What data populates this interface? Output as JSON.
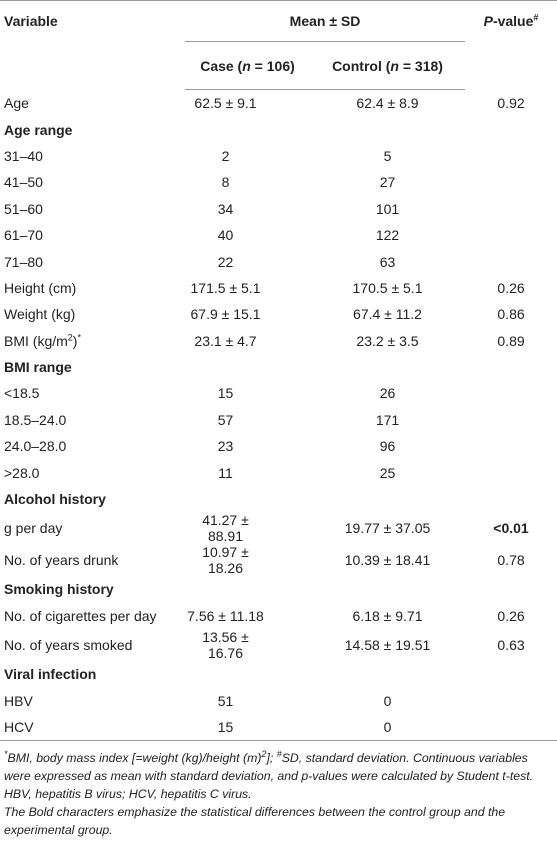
{
  "header": {
    "variable": "Variable",
    "mean_sd": "Mean ± SD",
    "case": [
      "Case (",
      {
        "text": "n",
        "style": "i"
      },
      " = 106)"
    ],
    "control": [
      "Control (",
      {
        "text": "n",
        "style": "i"
      },
      " = 318)"
    ],
    "p_value": [
      {
        "text": "P",
        "style": "i"
      },
      "-value",
      {
        "text": "#",
        "style": "sup"
      }
    ]
  },
  "table": {
    "rows": [
      {
        "cells": [
          "Age",
          "62.5 ± 9.1",
          "62.4 ± 8.9",
          "0.92"
        ]
      },
      {
        "cells": [
          "Age range"
        ],
        "section": true
      },
      {
        "cells": [
          "31–40",
          "2",
          "5"
        ]
      },
      {
        "cells": [
          "41–50",
          "8",
          "27"
        ]
      },
      {
        "cells": [
          "51–60",
          "34",
          "101"
        ]
      },
      {
        "cells": [
          "61–70",
          "40",
          "122"
        ]
      },
      {
        "cells": [
          "71–80",
          "22",
          "63"
        ]
      },
      {
        "cells": [
          "Height (cm)",
          "171.5 ± 5.1",
          "170.5 ± 5.1",
          "0.26"
        ]
      },
      {
        "cells": [
          "Weight (kg)",
          "67.9 ± 15.1",
          "67.4 ± 11.2",
          "0.86"
        ]
      },
      {
        "cells": [
          [
            "BMI (kg/m",
            {
              "text": "2",
              "style": "sup"
            },
            ")",
            {
              "text": "*",
              "style": "sup"
            }
          ],
          "23.1 ± 4.7",
          "23.2 ± 3.5",
          "0.89"
        ]
      },
      {
        "cells": [
          "BMI range"
        ],
        "section": true
      },
      {
        "cells": [
          "<18.5",
          "15",
          "26"
        ]
      },
      {
        "cells": [
          "18.5–24.0",
          "57",
          "171"
        ]
      },
      {
        "cells": [
          "24.0–28.0",
          "23",
          "96"
        ]
      },
      {
        "cells": [
          ">28.0",
          "11",
          "25"
        ]
      },
      {
        "cells": [
          "Alcohol history"
        ],
        "section": true
      },
      {
        "cells": [
          "g per day",
          "41.27 ± 88.91",
          "19.77 ± 37.05",
          "<0.01"
        ],
        "bold_p": true
      },
      {
        "cells": [
          "No. of years drunk",
          "10.97 ± 18.26",
          "10.39 ± 18.41",
          "0.78"
        ]
      },
      {
        "cells": [
          "Smoking history"
        ],
        "section": true
      },
      {
        "cells": [
          "No. of cigarettes per day",
          "7.56 ± 11.18",
          "6.18 ± 9.71",
          "0.26"
        ]
      },
      {
        "cells": [
          "No. of years smoked",
          "13.56 ± 16.76",
          "14.58 ± 19.51",
          "0.63"
        ]
      },
      {
        "cells": [
          "Viral infection"
        ],
        "section": true
      },
      {
        "cells": [
          "HBV",
          "51",
          "0"
        ]
      },
      {
        "cells": [
          "HCV",
          "15",
          "0"
        ]
      }
    ]
  },
  "footnotes": [
    [
      {
        "text": "*",
        "style": "sup"
      },
      "BMI, body mass index [=weight (kg)/height (m)",
      {
        "text": "2",
        "style": "sup"
      },
      "]; ",
      {
        "text": "#",
        "style": "sup"
      },
      "SD, standard deviation. Continuous variables were expressed as mean with standard deviation, and p-values were calculated by Student t-test."
    ],
    [
      "HBV, hepatitis B virus; HCV, hepatitis C virus."
    ],
    [
      "The Bold characters emphasize the statistical differences between the control group and the experimental group."
    ]
  ]
}
